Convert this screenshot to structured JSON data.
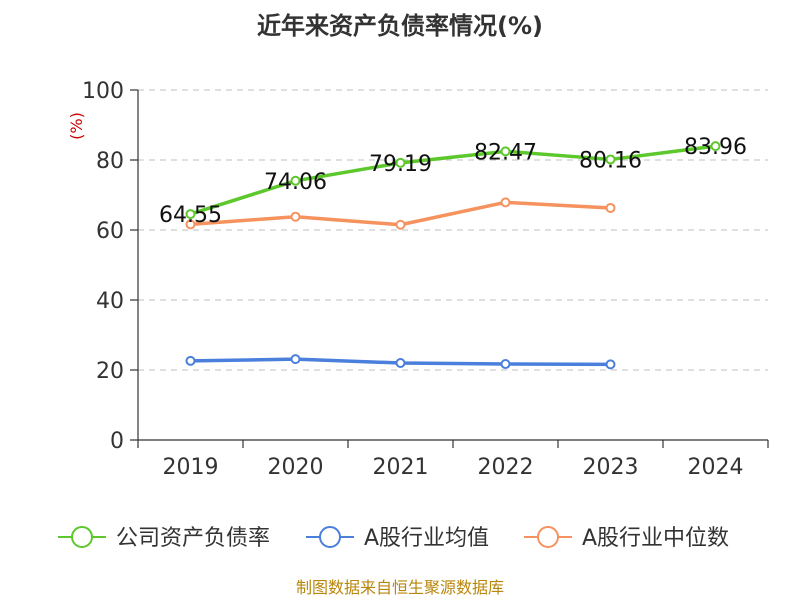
{
  "chart_data": {
    "type": "line",
    "title": "近年来资产负债率情况(%)",
    "ylabel": "(%)",
    "xlabel": "",
    "categories": [
      "2019",
      "2020",
      "2021",
      "2022",
      "2023",
      "2024"
    ],
    "ylim": [
      0,
      100
    ],
    "yticks": [
      0,
      20,
      40,
      60,
      80,
      100
    ],
    "grid": true,
    "legend_position": "bottom",
    "series": [
      {
        "name": "公司资产负债率",
        "color": "#5cc82c",
        "values": [
          64.55,
          74.06,
          79.19,
          82.47,
          80.16,
          83.96
        ],
        "labels": [
          "64.55",
          "74.06",
          "79.19",
          "82.47",
          "80.16",
          "83.96"
        ]
      },
      {
        "name": "A股行业均值",
        "color": "#4a7fdc",
        "values": [
          22.6,
          23.1,
          22.0,
          21.7,
          21.6,
          null
        ]
      },
      {
        "name": "A股行业中位数",
        "color": "#f5925e",
        "values": [
          61.6,
          63.8,
          61.5,
          67.9,
          66.3,
          null
        ]
      }
    ]
  },
  "source": "制图数据来自恒生聚源数据库"
}
